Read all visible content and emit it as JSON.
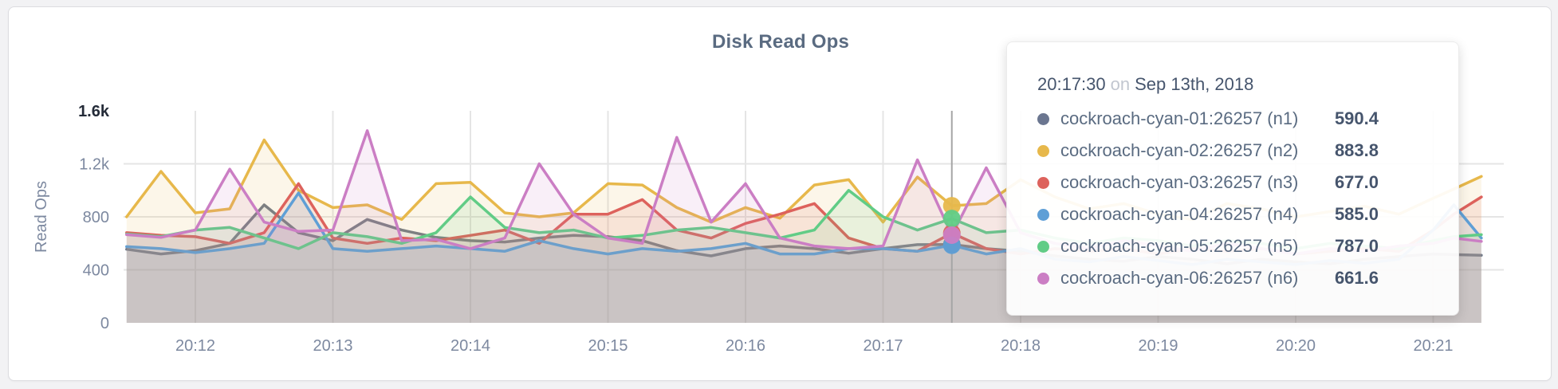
{
  "panel": {
    "title": "Disk Read Ops"
  },
  "tooltip": {
    "time": "20:17:30",
    "on_word": "on",
    "date": "Sep 13th, 2018",
    "rows": [
      {
        "name": "cockroach-cyan-01:26257 (n1)",
        "value": "590.4",
        "color": "#6b7690"
      },
      {
        "name": "cockroach-cyan-02:26257 (n2)",
        "value": "883.8",
        "color": "#e7b84b"
      },
      {
        "name": "cockroach-cyan-03:26257 (n3)",
        "value": "677.0",
        "color": "#dd625c"
      },
      {
        "name": "cockroach-cyan-04:26257 (n4)",
        "value": "585.0",
        "color": "#5f9fd6"
      },
      {
        "name": "cockroach-cyan-05:26257 (n5)",
        "value": "787.0",
        "color": "#61cc86"
      },
      {
        "name": "cockroach-cyan-06:26257 (n6)",
        "value": "661.6",
        "color": "#cb7ec4"
      }
    ]
  },
  "chart_data": {
    "type": "area",
    "title": "Disk Read Ops",
    "ylabel": "Read Ops",
    "xlabel": "",
    "ylim": [
      0,
      1600
    ],
    "grid": true,
    "legend_position": "tooltip-only",
    "x_unit": "time of day (HH:MM), Sep 13th 2018",
    "y_ticks": [
      {
        "v": 0,
        "label": "0",
        "bold": false
      },
      {
        "v": 400,
        "label": "400",
        "bold": false
      },
      {
        "v": 800,
        "label": "800",
        "bold": false
      },
      {
        "v": 1200,
        "label": "1.2k",
        "bold": false
      },
      {
        "v": 1600,
        "label": "1.6k",
        "bold": true
      }
    ],
    "x_ticks": [
      {
        "m": 12,
        "label": "20:12"
      },
      {
        "m": 13,
        "label": "20:13"
      },
      {
        "m": 14,
        "label": "20:14"
      },
      {
        "m": 15,
        "label": "20:15"
      },
      {
        "m": 16,
        "label": "20:16"
      },
      {
        "m": 17,
        "label": "20:17"
      },
      {
        "m": 18,
        "label": "20:18"
      },
      {
        "m": 19,
        "label": "20:19"
      },
      {
        "m": 20,
        "label": "20:20"
      },
      {
        "m": 21,
        "label": "20:21"
      }
    ],
    "x_minutes": [
      11.5,
      11.75,
      12,
      12.25,
      12.5,
      12.75,
      13,
      13.25,
      13.5,
      13.75,
      14,
      14.25,
      14.5,
      14.75,
      15,
      15.25,
      15.5,
      15.75,
      16,
      16.25,
      16.5,
      16.75,
      17,
      17.25,
      17.5,
      17.75,
      18,
      18.25,
      18.5,
      18.75,
      19,
      19.25,
      19.5,
      19.75,
      20,
      20.25,
      20.5,
      20.75,
      21,
      21.15,
      21.35
    ],
    "series": [
      {
        "name": "cockroach-cyan-01:26257 (n1)",
        "color": "#6f7889",
        "values": [
          555,
          520,
          545,
          600,
          890,
          680,
          620,
          780,
          700,
          645,
          620,
          610,
          640,
          660,
          650,
          620,
          545,
          505,
          560,
          580,
          560,
          525,
          560,
          590,
          590.4,
          560,
          540,
          505,
          480,
          465,
          500,
          480,
          445,
          480,
          460,
          445,
          480,
          500,
          520,
          515,
          510
        ]
      },
      {
        "name": "cockroach-cyan-02:26257 (n2)",
        "color": "#e7b84b",
        "values": [
          800,
          1143,
          830,
          860,
          1380,
          1000,
          870,
          890,
          780,
          1050,
          1060,
          830,
          800,
          830,
          1050,
          1040,
          870,
          760,
          870,
          790,
          1040,
          1080,
          760,
          1100,
          883.8,
          900,
          1080,
          950,
          860,
          900,
          820,
          780,
          900,
          860,
          800,
          840,
          880,
          820,
          940,
          1010,
          1105
        ]
      },
      {
        "name": "cockroach-cyan-03:26257 (n3)",
        "color": "#dd625c",
        "values": [
          680,
          660,
          650,
          600,
          680,
          1050,
          640,
          600,
          640,
          620,
          660,
          700,
          600,
          820,
          820,
          930,
          700,
          640,
          750,
          820,
          900,
          640,
          560,
          540,
          677,
          560,
          520,
          560,
          540,
          560,
          520,
          560,
          540,
          560,
          520,
          540,
          560,
          540,
          700,
          820,
          950
        ]
      },
      {
        "name": "cockroach-cyan-04:26257 (n4)",
        "color": "#5f9fd6",
        "values": [
          575,
          560,
          530,
          560,
          600,
          980,
          560,
          540,
          560,
          580,
          560,
          540,
          620,
          560,
          520,
          560,
          540,
          560,
          600,
          520,
          520,
          560,
          560,
          540,
          585,
          520,
          560,
          480,
          460,
          500,
          470,
          440,
          480,
          460,
          440,
          470,
          450,
          480,
          700,
          890,
          640
        ]
      },
      {
        "name": "cockroach-cyan-05:26257 (n5)",
        "color": "#61cc86",
        "values": [
          670,
          650,
          700,
          720,
          640,
          560,
          680,
          650,
          600,
          680,
          950,
          720,
          680,
          700,
          640,
          660,
          700,
          720,
          680,
          640,
          700,
          1000,
          800,
          700,
          787,
          680,
          700,
          640,
          600,
          640,
          620,
          580,
          620,
          600,
          560,
          600,
          580,
          560,
          620,
          650,
          665
        ]
      },
      {
        "name": "cockroach-cyan-06:26257 (n6)",
        "color": "#cb7ec4",
        "values": [
          665,
          645,
          700,
          1160,
          760,
          690,
          700,
          1450,
          620,
          630,
          560,
          640,
          1200,
          820,
          640,
          600,
          1400,
          760,
          1050,
          640,
          580,
          560,
          580,
          1230,
          661.6,
          1170,
          680,
          600,
          560,
          620,
          580,
          540,
          600,
          560,
          520,
          560,
          540,
          580,
          600,
          640,
          615
        ]
      }
    ],
    "hover": {
      "index": 24,
      "time_label": "20:17:30",
      "values": [
        590.4,
        883.8,
        677.0,
        585.0,
        787.0,
        661.6
      ]
    }
  },
  "style": {
    "grid_color": "#e5e5e5",
    "guideline_color": "#a5a5a5",
    "tick_color": "#7d89a0",
    "tick_bold_color": "#242b38",
    "fill_opacity": 0.12
  }
}
